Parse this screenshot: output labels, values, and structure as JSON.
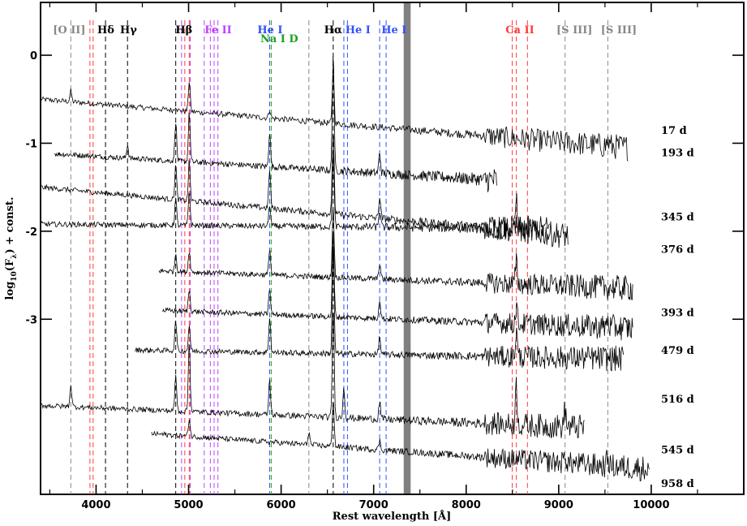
{
  "chart_data": {
    "type": "line",
    "title": "",
    "xlabel": "Rest wavelength [Å]",
    "ylabel": "log10(Fλ) + const.",
    "ylabel_parts": {
      "main": "log",
      "sub10": "10",
      "paren": "(F",
      "sublambda": "λ",
      "tail": ") + const."
    },
    "xlim": [
      3400,
      11000
    ],
    "ylim": [
      -4.99,
      0.6
    ],
    "x_ticks": [
      4000,
      5000,
      6000,
      7000,
      8000,
      9000,
      10000
    ],
    "x_tick_labels": [
      "4000",
      "5000",
      "6000",
      "7000",
      "8000",
      "9000",
      "10000"
    ],
    "y_ticks": [
      0,
      -1,
      -2,
      -3
    ],
    "y_tick_labels": [
      "0",
      "-1",
      "-2",
      "-3"
    ],
    "telluric_band": {
      "x0": 7325,
      "x1": 7400,
      "color": "#808080"
    },
    "line_groups": [
      {
        "label": "[O II]",
        "color": "#888888",
        "wavelengths": [
          3727
        ],
        "label_x": 3710,
        "label_row": 1
      },
      {
        "label": "",
        "color": "#ff3b3b",
        "wavelengths": [
          3934,
          3968
        ],
        "label_x": 3950,
        "label_row": 1
      },
      {
        "label": "Hδ",
        "color": "#000000",
        "wavelengths": [
          4102
        ],
        "label_x": 4105,
        "label_row": 1
      },
      {
        "label": "Hγ",
        "color": "#000000",
        "wavelengths": [
          4340
        ],
        "label_x": 4350,
        "label_row": 1
      },
      {
        "label": "Hβ",
        "color": "#000000",
        "wavelengths": [
          4861
        ],
        "label_x": 4950,
        "label_row": 1
      },
      {
        "label": "",
        "color": "#ff3b3b",
        "wavelengths": [
          4959,
          5007
        ],
        "label_x": 4980,
        "label_row": 1
      },
      {
        "label": "Fe II",
        "color": "#c040ff",
        "wavelengths": [
          4924,
          5018,
          5169,
          5235,
          5276,
          5317
        ],
        "label_x": 5320,
        "label_row": 1
      },
      {
        "label": "He I",
        "color": "#3050ff",
        "wavelengths": [
          5876
        ],
        "label_x": 5880,
        "label_row": 1
      },
      {
        "label": "Na I D",
        "color": "#20a020",
        "wavelengths": [
          5893
        ],
        "label_x": 5980,
        "label_row": 2
      },
      {
        "label": "",
        "color": "#888888",
        "wavelengths": [
          6300
        ],
        "label_x": 6300,
        "label_row": 1
      },
      {
        "label": "Hα",
        "color": "#000000",
        "wavelengths": [
          6563
        ],
        "label_x": 6563,
        "label_row": 1
      },
      {
        "label": "He I",
        "color": "#3050ff",
        "wavelengths": [
          6678,
          6717
        ],
        "label_x": 6830,
        "label_row": 1
      },
      {
        "label": "He I",
        "color": "#3050ff",
        "wavelengths": [
          7065,
          7135
        ],
        "label_x": 7220,
        "label_row": 1
      },
      {
        "label": "Ca II",
        "color": "#ff3b3b",
        "wavelengths": [
          8498,
          8542,
          8662
        ],
        "label_x": 8580,
        "label_row": 1
      },
      {
        "label": "[S III]",
        "color": "#888888",
        "wavelengths": [
          9069
        ],
        "label_x": 9170,
        "label_row": 1
      },
      {
        "label": "[S III]",
        "color": "#888888",
        "wavelengths": [
          9531
        ],
        "label_x": 9650,
        "label_row": 1
      }
    ],
    "series": [
      {
        "name": "17 d",
        "x_range": [
          3400,
          9750
        ],
        "baseline": -0.5,
        "slope": -0.55,
        "label_y": -0.85,
        "peaks": [
          [
            3727,
            0.12
          ],
          [
            4861,
            0.05
          ],
          [
            5007,
            0.35
          ],
          [
            5876,
            0.1
          ],
          [
            6563,
            0.6
          ],
          [
            9531,
            0.06
          ]
        ]
      },
      {
        "name": "193 d",
        "x_range": [
          3550,
          8330
        ],
        "baseline": -1.12,
        "slope": -0.3,
        "label_y": -1.1,
        "peaks": [
          [
            4340,
            0.15
          ],
          [
            4861,
            0.45
          ],
          [
            5007,
            0.55
          ],
          [
            5876,
            0.4
          ],
          [
            6563,
            1.35
          ],
          [
            7065,
            0.22
          ]
        ]
      },
      {
        "name": "345 d",
        "x_range": [
          3400,
          9100
        ],
        "baseline": -1.5,
        "slope": -0.55,
        "label_y": -1.83,
        "peaks": [
          [
            4861,
            0.4
          ],
          [
            5007,
            0.45
          ],
          [
            5876,
            0.45
          ],
          [
            6563,
            1.0
          ],
          [
            7065,
            0.25
          ],
          [
            8542,
            0.4
          ]
        ]
      },
      {
        "name": "376 d",
        "x_range": [
          3400,
          8900
        ],
        "baseline": -1.92,
        "slope": -0.05,
        "label_y": -2.2,
        "peaks": [
          [
            4861,
            0.3
          ],
          [
            5007,
            0.4
          ],
          [
            5876,
            0.25
          ],
          [
            6563,
            0.85
          ],
          [
            7065,
            0.2
          ]
        ]
      },
      {
        "name": "393 d",
        "x_range": [
          4680,
          9800
        ],
        "baseline": -2.45,
        "slope": -0.2,
        "label_y": -2.92,
        "peaks": [
          [
            4861,
            0.2
          ],
          [
            5007,
            0.25
          ],
          [
            5876,
            0.3
          ],
          [
            6563,
            0.8
          ],
          [
            7065,
            0.18
          ],
          [
            8542,
            0.25
          ]
        ]
      },
      {
        "name": "479 d",
        "x_range": [
          4720,
          9800
        ],
        "baseline": -2.9,
        "slope": -0.2,
        "label_y": -3.35,
        "peaks": [
          [
            5007,
            0.25
          ],
          [
            5876,
            0.3
          ],
          [
            6563,
            0.95
          ],
          [
            7065,
            0.22
          ],
          [
            8542,
            0.2
          ],
          [
            9531,
            0.1
          ]
        ]
      },
      {
        "name": "516 d",
        "x_range": [
          4420,
          9700
        ],
        "baseline": -3.35,
        "slope": -0.1,
        "label_y": -3.9,
        "peaks": [
          [
            4861,
            0.35
          ],
          [
            5007,
            0.3
          ],
          [
            5876,
            0.4
          ],
          [
            6563,
            1.2
          ],
          [
            7065,
            0.2
          ],
          [
            8542,
            0.3
          ]
        ]
      },
      {
        "name": "545 d",
        "x_range": [
          3400,
          9280
        ],
        "baseline": -3.98,
        "slope": -0.25,
        "label_y": -4.48,
        "peaks": [
          [
            3727,
            0.25
          ],
          [
            4861,
            0.4
          ],
          [
            5007,
            0.8
          ],
          [
            5876,
            0.4
          ],
          [
            6563,
            1.3
          ],
          [
            6678,
            0.35
          ],
          [
            7065,
            0.2
          ],
          [
            8542,
            0.45
          ],
          [
            9069,
            0.2
          ],
          [
            9531,
            0.25
          ]
        ]
      },
      {
        "name": "958 d",
        "x_range": [
          4600,
          9980
        ],
        "baseline": -4.3,
        "slope": -0.4,
        "label_y": -4.86,
        "peaks": [
          [
            5007,
            0.2
          ],
          [
            6300,
            0.15
          ],
          [
            6563,
            0.55
          ],
          [
            7065,
            0.1
          ],
          [
            9069,
            0.1
          ],
          [
            9531,
            0.1
          ]
        ]
      }
    ]
  }
}
